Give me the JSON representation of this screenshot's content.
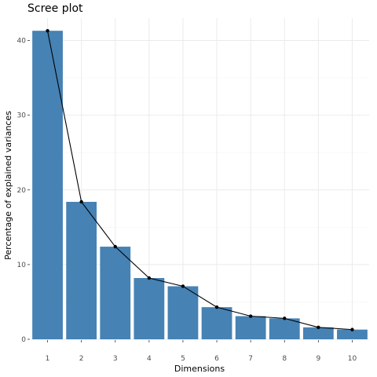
{
  "chart_data": {
    "type": "bar",
    "title": "Scree plot",
    "xlabel": "Dimensions",
    "ylabel": "Percentage of explained variances",
    "categories": [
      "1",
      "2",
      "3",
      "4",
      "5",
      "6",
      "7",
      "8",
      "9",
      "10"
    ],
    "values": [
      41.3,
      18.4,
      12.4,
      8.2,
      7.1,
      4.3,
      3.1,
      2.8,
      1.6,
      1.3
    ],
    "ylim": [
      0,
      43
    ],
    "yticks": [
      "0",
      "10",
      "20",
      "30",
      "40"
    ],
    "grid": true,
    "legend": "none",
    "overlay": "line-with-points",
    "bar_color": "#4682B4",
    "line_color": "#000000"
  }
}
